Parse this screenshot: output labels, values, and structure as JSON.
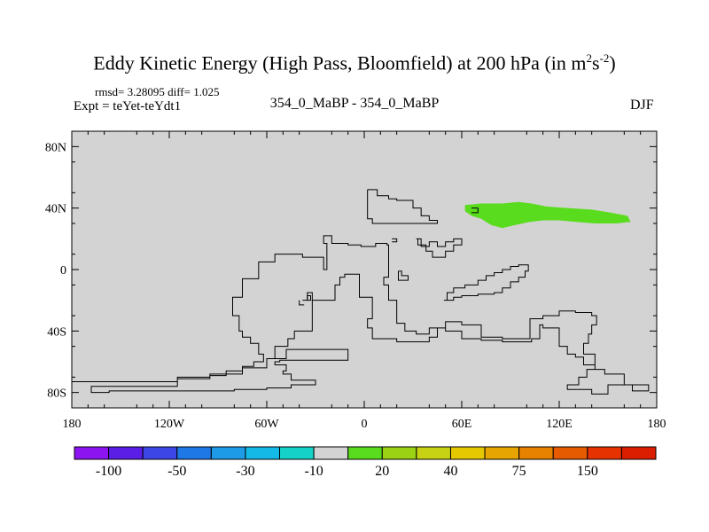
{
  "title": {
    "main": "Eddy Kinetic Energy (High Pass, Bloomfield) at 200 hPa (in m",
    "sup1": "2",
    "mid": "s",
    "sup2": "-2",
    "end": ")"
  },
  "subtitle": {
    "rmsd": "rmsd= 3.28095 diff= 1.025",
    "expt": "Expt = teYet-teYdt1",
    "center": "354_0_MaBP - 354_0_MaBP",
    "season": "DJF"
  },
  "chart_data": {
    "type": "heatmap",
    "title": "Eddy Kinetic Energy (High Pass, Bloomfield) at 200 hPa (in m^2 s^-2)",
    "xlim": [
      -180,
      180
    ],
    "ylim": [
      -90,
      90
    ],
    "xticks": [
      {
        "value": -180,
        "label": "180"
      },
      {
        "value": -120,
        "label": "120W"
      },
      {
        "value": -60,
        "label": "60W"
      },
      {
        "value": 0,
        "label": "0"
      },
      {
        "value": 60,
        "label": "60E"
      },
      {
        "value": 120,
        "label": "120E"
      },
      {
        "value": 180,
        "label": "180"
      }
    ],
    "yticks": [
      {
        "value": 80,
        "label": "80N"
      },
      {
        "value": 40,
        "label": "40N"
      },
      {
        "value": 0,
        "label": "0"
      },
      {
        "value": -40,
        "label": "40S"
      },
      {
        "value": -80,
        "label": "80S"
      }
    ],
    "background_color": "#d3d3d3",
    "colorbar": {
      "colors": [
        "#8c14f0",
        "#5a1ee6",
        "#3c46e6",
        "#1e78e6",
        "#1e9be6",
        "#14b9e6",
        "#14d2c8",
        "#d3d3d3",
        "#5adc1e",
        "#9bd214",
        "#c8d214",
        "#e6c800",
        "#e6a500",
        "#e68200",
        "#e65a00",
        "#e63200",
        "#dc1e00"
      ],
      "labels": [
        {
          "after_box": 1,
          "text": "-100"
        },
        {
          "after_box": 3,
          "text": "-50"
        },
        {
          "after_box": 5,
          "text": "-30"
        },
        {
          "after_box": 7,
          "text": "-10"
        },
        {
          "after_box": 9,
          "text": "20"
        },
        {
          "after_box": 11,
          "text": "40"
        },
        {
          "after_box": 13,
          "text": "75"
        },
        {
          "after_box": 15,
          "text": "150"
        }
      ]
    },
    "shaded_regions": [
      {
        "value_class": "20",
        "color": "#5adc1e",
        "polygon": [
          [
            62,
            42
          ],
          [
            72,
            43
          ],
          [
            85,
            43
          ],
          [
            95,
            44
          ],
          [
            103,
            43
          ],
          [
            112,
            41
          ],
          [
            125,
            40
          ],
          [
            140,
            39
          ],
          [
            152,
            37
          ],
          [
            162,
            35
          ],
          [
            164,
            31
          ],
          [
            155,
            30
          ],
          [
            142,
            30
          ],
          [
            130,
            31
          ],
          [
            120,
            32
          ],
          [
            110,
            32
          ],
          [
            102,
            31
          ],
          [
            93,
            29
          ],
          [
            85,
            27
          ],
          [
            78,
            29
          ],
          [
            72,
            33
          ],
          [
            66,
            35
          ],
          [
            62,
            38
          ]
        ]
      }
    ],
    "coastlines": [
      [
        [
          -180,
          -73
        ],
        [
          -115,
          -73
        ],
        [
          -115,
          -70
        ],
        [
          -95,
          -70
        ],
        [
          -95,
          -69
        ],
        [
          -85,
          -69
        ],
        [
          -85,
          -66
        ],
        [
          -75,
          -66
        ],
        [
          -75,
          -63
        ],
        [
          -68,
          -63
        ],
        [
          -68,
          -60
        ],
        [
          -62,
          -60
        ],
        [
          -62,
          -55
        ],
        [
          -65,
          -55
        ],
        [
          -65,
          -48
        ],
        [
          -70,
          -48
        ],
        [
          -70,
          -44
        ],
        [
          -75,
          -44
        ],
        [
          -75,
          -40
        ],
        [
          -77,
          -40
        ],
        [
          -77,
          -30
        ],
        [
          -81,
          -30
        ],
        [
          -81,
          -18
        ],
        [
          -75,
          -18
        ],
        [
          -75,
          -6
        ],
        [
          -65,
          -6
        ],
        [
          -65,
          5
        ],
        [
          -55,
          5
        ],
        [
          -55,
          10
        ],
        [
          -38,
          10
        ],
        [
          -38,
          8
        ],
        [
          -25,
          8
        ],
        [
          -25,
          0
        ],
        [
          -23,
          0
        ],
        [
          -23,
          17
        ],
        [
          -25,
          17
        ],
        [
          -25,
          22
        ],
        [
          -20,
          22
        ],
        [
          -20,
          17
        ],
        [
          -10,
          17
        ],
        [
          -10,
          16
        ],
        [
          -2,
          16
        ],
        [
          -2,
          15
        ],
        [
          7,
          15
        ],
        [
          7,
          17
        ],
        [
          14,
          17
        ],
        [
          14,
          16
        ],
        [
          15,
          16
        ],
        [
          15,
          -5
        ],
        [
          12,
          -5
        ],
        [
          12,
          -10
        ],
        [
          15,
          -10
        ],
        [
          15,
          -20
        ],
        [
          20,
          -20
        ],
        [
          20,
          -35
        ],
        [
          25,
          -35
        ],
        [
          25,
          -40
        ],
        [
          32,
          -40
        ],
        [
          32,
          -42
        ],
        [
          40,
          -42
        ],
        [
          40,
          -38
        ],
        [
          50,
          -38
        ],
        [
          50,
          -34
        ],
        [
          60,
          -34
        ],
        [
          60,
          -36
        ],
        [
          72,
          -36
        ],
        [
          72,
          -44
        ],
        [
          85,
          -44
        ],
        [
          85,
          -45
        ],
        [
          102,
          -45
        ],
        [
          102,
          -32
        ],
        [
          110,
          -32
        ],
        [
          110,
          -30
        ],
        [
          120,
          -30
        ],
        [
          120,
          -27
        ],
        [
          130,
          -27
        ],
        [
          130,
          -28
        ],
        [
          140,
          -28
        ],
        [
          140,
          -30
        ],
        [
          143,
          -30
        ],
        [
          143,
          -36
        ],
        [
          140,
          -36
        ],
        [
          140,
          -42
        ],
        [
          138,
          -42
        ],
        [
          138,
          -48
        ],
        [
          135,
          -48
        ],
        [
          135,
          -55
        ],
        [
          142,
          -55
        ],
        [
          142,
          -65
        ],
        [
          148,
          -65
        ],
        [
          148,
          -68
        ],
        [
          160,
          -68
        ],
        [
          160,
          -75
        ],
        [
          175,
          -75
        ],
        [
          175,
          -79
        ],
        [
          165,
          -79
        ],
        [
          165,
          -75
        ],
        [
          150,
          -75
        ],
        [
          150,
          -81
        ],
        [
          140,
          -81
        ],
        [
          140,
          -78
        ],
        [
          125,
          -78
        ],
        [
          125,
          -75
        ],
        [
          132,
          -75
        ],
        [
          132,
          -70
        ],
        [
          137,
          -70
        ],
        [
          137,
          -65
        ],
        [
          142,
          -65
        ],
        [
          142,
          -62
        ],
        [
          135,
          -62
        ],
        [
          135,
          -57
        ],
        [
          130,
          -57
        ],
        [
          130,
          -55
        ],
        [
          125,
          -55
        ],
        [
          125,
          -50
        ],
        [
          120,
          -50
        ],
        [
          120,
          -38
        ],
        [
          110,
          -38
        ],
        [
          110,
          -36
        ],
        [
          108,
          -36
        ],
        [
          108,
          -45
        ],
        [
          103,
          -45
        ],
        [
          103,
          -47
        ],
        [
          85,
          -47
        ],
        [
          85,
          -46
        ],
        [
          72,
          -46
        ],
        [
          72,
          -45
        ],
        [
          60,
          -45
        ],
        [
          60,
          -40
        ],
        [
          50,
          -40
        ],
        [
          50,
          -38
        ],
        [
          45,
          -38
        ],
        [
          45,
          -44
        ],
        [
          40,
          -44
        ],
        [
          40,
          -47
        ],
        [
          20,
          -47
        ],
        [
          20,
          -45
        ],
        [
          5,
          -45
        ],
        [
          5,
          -38
        ],
        [
          2,
          -38
        ],
        [
          2,
          -32
        ],
        [
          5,
          -32
        ],
        [
          5,
          -18
        ],
        [
          -3,
          -18
        ],
        [
          -3,
          -3
        ],
        [
          -12,
          -3
        ],
        [
          -12,
          -5
        ],
        [
          -15,
          -5
        ],
        [
          -15,
          -10
        ],
        [
          -18,
          -10
        ],
        [
          -18,
          -20
        ],
        [
          -32,
          -20
        ],
        [
          -32,
          -40
        ],
        [
          -43,
          -40
        ],
        [
          -43,
          -45
        ],
        [
          -47,
          -45
        ],
        [
          -47,
          -50
        ],
        [
          -55,
          -50
        ],
        [
          -55,
          -58
        ],
        [
          -60,
          -58
        ],
        [
          -60,
          -64
        ],
        [
          -75,
          -64
        ],
        [
          -75,
          -68
        ],
        [
          -95,
          -68
        ],
        [
          -95,
          -71
        ],
        [
          -115,
          -71
        ],
        [
          -115,
          -76
        ],
        [
          -168,
          -76
        ],
        [
          -168,
          -80
        ],
        [
          -157,
          -80
        ],
        [
          -157,
          -79
        ],
        [
          -80,
          -79
        ],
        [
          -80,
          -78
        ],
        [
          -60,
          -78
        ],
        [
          -60,
          -77
        ],
        [
          -45,
          -77
        ],
        [
          -45,
          -75
        ],
        [
          -30,
          -75
        ],
        [
          -30,
          -72
        ],
        [
          -45,
          -72
        ],
        [
          -45,
          -68
        ],
        [
          -50,
          -68
        ],
        [
          -50,
          -66
        ],
        [
          -48,
          -66
        ],
        [
          -48,
          -62
        ],
        [
          -55,
          -62
        ],
        [
          -55,
          -60
        ],
        [
          -52,
          -60
        ],
        [
          -52,
          -59
        ],
        [
          -10,
          -59
        ],
        [
          -10,
          -52
        ],
        [
          -48,
          -52
        ],
        [
          -48,
          -58
        ],
        [
          -55,
          -58
        ]
      ],
      [
        [
          2,
          52
        ],
        [
          8,
          52
        ],
        [
          8,
          48
        ],
        [
          15,
          48
        ],
        [
          15,
          46
        ],
        [
          20,
          46
        ],
        [
          20,
          45
        ],
        [
          30,
          45
        ],
        [
          30,
          40
        ],
        [
          35,
          40
        ],
        [
          35,
          35
        ],
        [
          40,
          35
        ],
        [
          40,
          32
        ],
        [
          45,
          32
        ],
        [
          45,
          30
        ],
        [
          5,
          30
        ],
        [
          5,
          33
        ],
        [
          2,
          33
        ],
        [
          2,
          52
        ]
      ],
      [
        [
          32,
          20
        ],
        [
          35,
          20
        ],
        [
          35,
          15
        ],
        [
          40,
          15
        ],
        [
          40,
          18
        ],
        [
          45,
          18
        ],
        [
          45,
          15
        ],
        [
          50,
          15
        ],
        [
          50,
          18
        ],
        [
          55,
          18
        ],
        [
          55,
          20
        ],
        [
          60,
          20
        ],
        [
          60,
          16
        ],
        [
          55,
          16
        ],
        [
          55,
          12
        ],
        [
          50,
          12
        ],
        [
          50,
          8
        ],
        [
          42,
          8
        ],
        [
          42,
          12
        ],
        [
          38,
          12
        ],
        [
          38,
          16
        ],
        [
          33,
          16
        ],
        [
          33,
          20
        ]
      ],
      [
        [
          49,
          -20
        ],
        [
          51,
          -20
        ],
        [
          51,
          -15
        ],
        [
          55,
          -15
        ],
        [
          55,
          -12
        ],
        [
          62,
          -12
        ],
        [
          62,
          -10
        ],
        [
          70,
          -10
        ],
        [
          70,
          -7
        ],
        [
          75,
          -7
        ],
        [
          75,
          -4
        ],
        [
          80,
          -4
        ],
        [
          80,
          -2
        ],
        [
          85,
          -2
        ],
        [
          85,
          0
        ],
        [
          90,
          0
        ],
        [
          90,
          2
        ],
        [
          95,
          2
        ],
        [
          95,
          3
        ],
        [
          101,
          3
        ],
        [
          101,
          -1
        ],
        [
          99,
          -1
        ],
        [
          99,
          -5
        ],
        [
          95,
          -5
        ],
        [
          95,
          -8
        ],
        [
          90,
          -8
        ],
        [
          90,
          -12
        ],
        [
          85,
          -12
        ],
        [
          85,
          -15
        ],
        [
          80,
          -15
        ],
        [
          80,
          -16
        ],
        [
          70,
          -16
        ],
        [
          70,
          -17
        ],
        [
          60,
          -17
        ],
        [
          60,
          -18
        ],
        [
          55,
          -18
        ],
        [
          55,
          -20
        ],
        [
          51,
          -20
        ]
      ],
      [
        [
          21,
          -1
        ],
        [
          23,
          -1
        ],
        [
          23,
          -4
        ],
        [
          27,
          -4
        ],
        [
          27,
          -7
        ],
        [
          21,
          -7
        ],
        [
          21,
          -1
        ]
      ],
      [
        [
          -38,
          -20
        ],
        [
          -35,
          -20
        ],
        [
          -35,
          -17
        ],
        [
          -33,
          -17
        ],
        [
          -33,
          -20
        ],
        [
          -38,
          -20
        ]
      ],
      [
        [
          -35,
          -20
        ],
        [
          -35,
          -15
        ],
        [
          -32,
          -15
        ],
        [
          -32,
          -20
        ]
      ],
      [
        [
          -40,
          -20
        ],
        [
          -40,
          -23
        ],
        [
          -37,
          -23
        ]
      ],
      [
        [
          66,
          40
        ],
        [
          70,
          40
        ],
        [
          70,
          37
        ],
        [
          66,
          37
        ]
      ],
      [
        [
          17,
          18
        ],
        [
          20,
          18
        ],
        [
          20,
          20
        ],
        [
          17,
          20
        ]
      ]
    ]
  }
}
